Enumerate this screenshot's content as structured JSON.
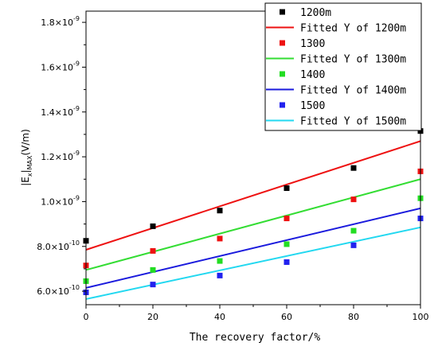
{
  "chart_data": {
    "type": "scatter",
    "xlabel": "The recovery factor/%",
    "ylabel": {
      "prefix": "|E",
      "sub_x": "x",
      "mid": "|",
      "sub_max": "MAX",
      "suffix": "(V/m)"
    },
    "xlim": [
      0,
      100
    ],
    "ylim": [
      5.4e-10,
      1.85e-09
    ],
    "xticks": [
      "0",
      "20",
      "40",
      "60",
      "80",
      "100"
    ],
    "yticks": [
      {
        "value": 6e-10,
        "mantissa": "6.0",
        "exponent": "-10"
      },
      {
        "value": 8e-10,
        "mantissa": "8.0",
        "exponent": "-10"
      },
      {
        "value": 1e-09,
        "mantissa": "1.0",
        "exponent": "-9"
      },
      {
        "value": 1.2e-09,
        "mantissa": "1.2",
        "exponent": "-9"
      },
      {
        "value": 1.4e-09,
        "mantissa": "1.4",
        "exponent": "-9"
      },
      {
        "value": 1.6e-09,
        "mantissa": "1.6",
        "exponent": "-9"
      },
      {
        "value": 1.8e-09,
        "mantissa": "1.8",
        "exponent": "-9"
      }
    ],
    "ytick_times": "×10",
    "grid": false,
    "legend_position": "top-right",
    "x": [
      0,
      20,
      40,
      60,
      80,
      100
    ],
    "series": [
      {
        "name": "1200m",
        "color": "#000000",
        "values": [
          8.25e-10,
          8.9e-10,
          9.6e-10,
          1.06e-09,
          1.15e-09,
          1.315e-09
        ]
      },
      {
        "name": "1300",
        "color": "#ee1111",
        "values": [
          7.15e-10,
          7.8e-10,
          8.35e-10,
          9.25e-10,
          1.01e-09,
          1.135e-09
        ]
      },
      {
        "name": "1400",
        "color": "#22dd22",
        "values": [
          6.45e-10,
          6.95e-10,
          7.35e-10,
          8.1e-10,
          8.7e-10,
          1.015e-09
        ]
      },
      {
        "name": "1500",
        "color": "#2222ee",
        "values": [
          5.95e-10,
          6.3e-10,
          6.7e-10,
          7.3e-10,
          8.05e-10,
          9.25e-10
        ]
      }
    ],
    "fits": [
      {
        "name": "Fitted Y of 1200m",
        "color": "#ee1111",
        "y_at_x0": 7.85e-10,
        "y_at_x100": 1.27e-09
      },
      {
        "name": "Fitted Y of 1300m",
        "color": "#33dd33",
        "y_at_x0": 6.95e-10,
        "y_at_x100": 1.1e-09
      },
      {
        "name": "Fitted Y of 1400m",
        "color": "#1a1add",
        "y_at_x0": 6.15e-10,
        "y_at_x100": 9.7e-10
      },
      {
        "name": "Fitted Y of 1500m",
        "color": "#22d8f0",
        "y_at_x0": 5.65e-10,
        "y_at_x100": 8.85e-10
      }
    ],
    "legend": [
      {
        "kind": "marker",
        "series": 0
      },
      {
        "kind": "line",
        "fit": 0
      },
      {
        "kind": "marker",
        "series": 1
      },
      {
        "kind": "line",
        "fit": 1
      },
      {
        "kind": "marker",
        "series": 2
      },
      {
        "kind": "line",
        "fit": 2
      },
      {
        "kind": "marker",
        "series": 3
      },
      {
        "kind": "line",
        "fit": 3
      }
    ]
  }
}
